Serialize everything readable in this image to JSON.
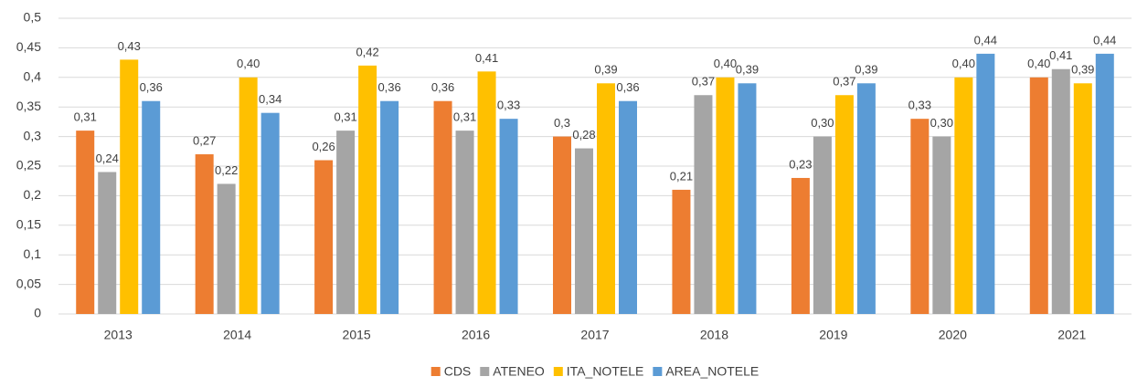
{
  "chart_data": {
    "type": "bar",
    "categories": [
      "2013",
      "2014",
      "2015",
      "2016",
      "2017",
      "2018",
      "2019",
      "2020",
      "2021"
    ],
    "series": [
      {
        "name": "CDS",
        "color": "#ed7d31",
        "values": [
          0.31,
          0.27,
          0.26,
          0.36,
          0.3,
          0.21,
          0.23,
          0.33,
          0.4
        ],
        "value_labels": [
          "0,31",
          "0,27",
          "0,26",
          "0,36",
          "0,3",
          "0,21",
          "0,23",
          "0,33",
          "0,40"
        ]
      },
      {
        "name": "ATENEO",
        "color": "#a5a5a5",
        "values": [
          0.24,
          0.22,
          0.31,
          0.31,
          0.28,
          0.37,
          0.3,
          0.3,
          0.414
        ],
        "value_labels": [
          "0,24",
          "0,22",
          "0,31",
          "0,31",
          "0,28",
          "0,37",
          "0,30",
          "0,30",
          "0,41"
        ]
      },
      {
        "name": "ITA_NOTELE",
        "color": "#ffc000",
        "values": [
          0.43,
          0.4,
          0.42,
          0.41,
          0.39,
          0.4,
          0.37,
          0.4,
          0.39
        ],
        "value_labels": [
          "0,43",
          "0,40",
          "0,42",
          "0,41",
          "0,39",
          "0,40",
          "0,37",
          "0,40",
          "0,39"
        ]
      },
      {
        "name": "AREA_NOTELE",
        "color": "#5b9bd5",
        "values": [
          0.36,
          0.34,
          0.36,
          0.33,
          0.36,
          0.39,
          0.39,
          0.44,
          0.44
        ],
        "value_labels": [
          "0,36",
          "0,34",
          "0,36",
          "0,33",
          "0,36",
          "0,39",
          "0,39",
          "0,44",
          "0,44"
        ]
      }
    ],
    "ylim": [
      0,
      0.5
    ],
    "yticks": [
      0,
      {
        "value": 0.05,
        "label": "0,05"
      },
      {
        "value": 0.1,
        "label": "0,1"
      },
      {
        "value": 0.15,
        "label": "0,15"
      },
      {
        "value": 0.2,
        "label": "0,2"
      },
      {
        "value": 0.25,
        "label": "0,25"
      },
      {
        "value": 0.3,
        "label": "0,3"
      },
      {
        "value": 0.35,
        "label": "0,35"
      },
      {
        "value": 0.4,
        "label": "0,4"
      },
      {
        "value": 0.45,
        "label": "0,45"
      },
      {
        "value": 0.5,
        "label": "0,5"
      }
    ],
    "grid": true,
    "legend": "bottom"
  }
}
